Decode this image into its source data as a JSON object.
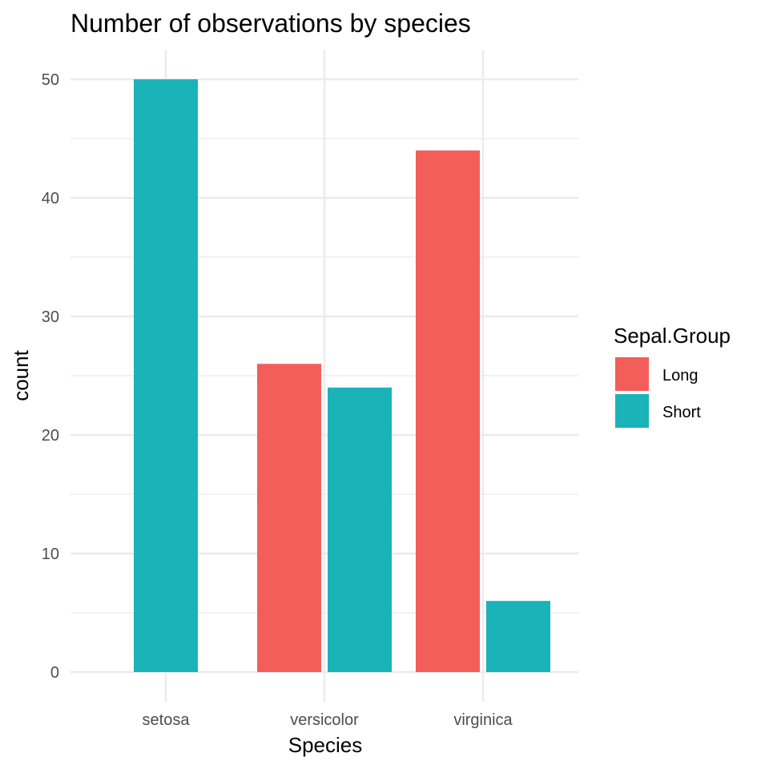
{
  "chart_data": {
    "type": "bar",
    "title": "Number of observations by species",
    "xlabel": "Species",
    "ylabel": "count",
    "categories": [
      "setosa",
      "versicolor",
      "virginica"
    ],
    "series": [
      {
        "name": "Long",
        "color": "#F8766D",
        "values": [
          0,
          26,
          44
        ]
      },
      {
        "name": "Short",
        "color": "#00BFC4",
        "values": [
          50,
          24,
          6
        ]
      }
    ],
    "ylim": [
      0,
      52
    ],
    "yticks": [
      0,
      10,
      20,
      30,
      40,
      50
    ],
    "grid": true,
    "legend": {
      "title": "Sepal.Group",
      "position": "right"
    },
    "colors": {
      "long": "#F35E5A",
      "short": "#19B3B8",
      "grid": "#EBEBEB"
    }
  }
}
